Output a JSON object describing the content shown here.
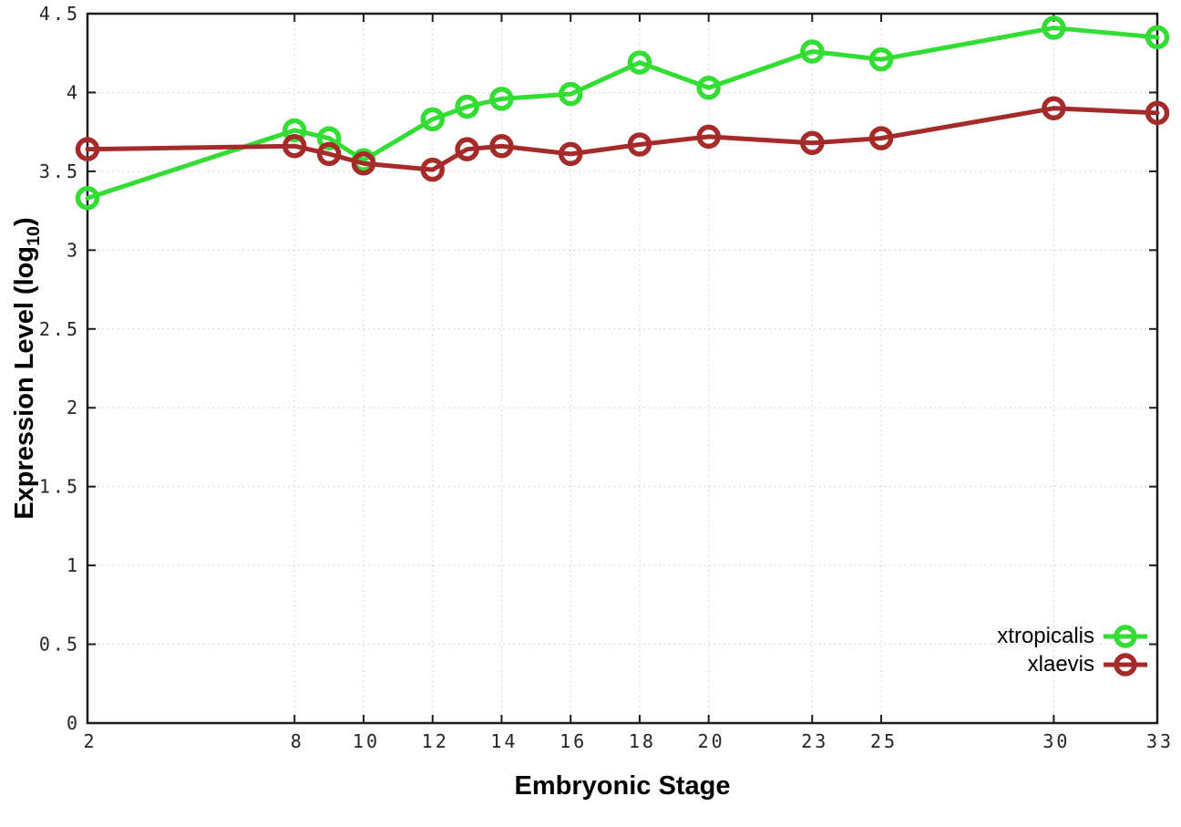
{
  "chart_data": {
    "type": "line",
    "title": "",
    "xlabel": "Embryonic Stage",
    "ylabel": "Expression Level (log10)",
    "ylabel_parts": {
      "prefix": "Expression Level (log",
      "sub": "10",
      "suffix": ")"
    },
    "x": [
      2,
      8,
      9,
      10,
      12,
      13,
      14,
      16,
      18,
      20,
      23,
      25,
      30,
      33
    ],
    "series": [
      {
        "name": "xtropicalis",
        "color": "#33dd33",
        "values": [
          3.33,
          3.76,
          3.71,
          3.57,
          3.83,
          3.91,
          3.96,
          3.99,
          4.19,
          4.03,
          4.26,
          4.21,
          4.41,
          4.35
        ]
      },
      {
        "name": "xlaevis",
        "color": "#a52a2a",
        "values": [
          3.64,
          3.66,
          3.61,
          3.55,
          3.51,
          3.64,
          3.66,
          3.61,
          3.67,
          3.72,
          3.68,
          3.71,
          3.9,
          3.87
        ]
      }
    ],
    "xticks": {
      "values": [
        2,
        8,
        10,
        12,
        14,
        16,
        18,
        20,
        23,
        25,
        30,
        33
      ],
      "labels": [
        "2",
        "8",
        "10",
        "12",
        "14",
        "16",
        "18",
        "20",
        "23",
        "25",
        "30",
        "33"
      ]
    },
    "yticks": {
      "values": [
        0,
        0.5,
        1,
        1.5,
        2,
        2.5,
        3,
        3.5,
        4,
        4.5
      ],
      "labels": [
        "0",
        "0.5",
        "1",
        "1.5",
        "2",
        "2.5",
        "3",
        "3.5",
        "4",
        "4.5"
      ]
    },
    "xlim": [
      2,
      33
    ],
    "ylim": [
      0,
      4.5
    ],
    "grid": true,
    "legend_position": "bottom-right",
    "colors": {
      "border": "#1c1c1c",
      "grid": "#c9c9c9",
      "tick_text": "#252525",
      "background": "#ffffff"
    }
  }
}
